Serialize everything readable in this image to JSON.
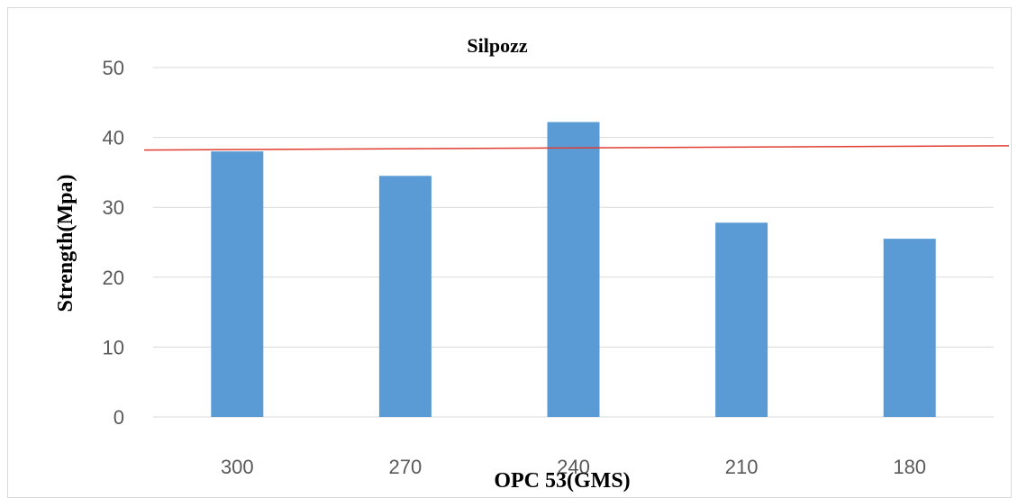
{
  "chart_data": {
    "type": "bar",
    "title": "Silpozz",
    "xlabel": "OPC 53(GMS)",
    "ylabel": "Strength(Mpa)",
    "categories": [
      "300",
      "270",
      "240",
      "210",
      "180"
    ],
    "values": [
      38,
      34.5,
      42.2,
      27.8,
      25.5
    ],
    "ylim": [
      0,
      50
    ],
    "yticks": [
      0,
      10,
      20,
      30,
      40,
      50
    ],
    "grid": true,
    "reference_line": {
      "y_start": 38.2,
      "y_end": 38.8,
      "color": "#e03c31"
    },
    "colors": {
      "bar": "#5b9bd5",
      "grid": "#d9d9d9",
      "tick_text": "#595959"
    }
  }
}
